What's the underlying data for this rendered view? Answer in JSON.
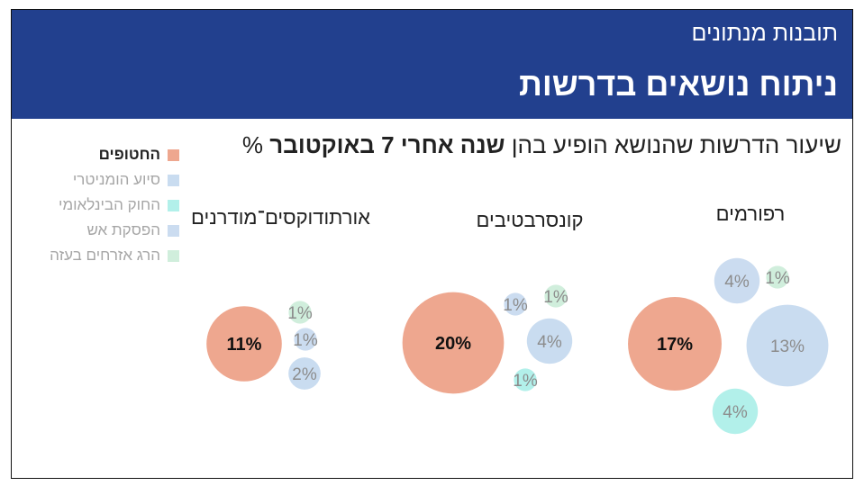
{
  "header": {
    "kicker": "תובנות מנתונים",
    "title": "ניתוח נושאים בדרשות"
  },
  "subtitle": {
    "prefix": "שיעור הדרשות שהנושא הופיע בהן",
    "bold": "שנה אחרי 7 באוקטובר",
    "suffix": "%"
  },
  "legend": [
    {
      "label": "החטופים",
      "color": "#eea78f",
      "active": true
    },
    {
      "label": "סיוע הומניטרי",
      "color": "#c9dcf0",
      "active": false
    },
    {
      "label": "החוק הבינלאומי",
      "color": "#b2f0ea",
      "active": false
    },
    {
      "label": "הפסקת אש",
      "color": "#cbdcf0",
      "active": false
    },
    {
      "label": "הרג אזרחים בעזה",
      "color": "#d0eedc",
      "active": false
    }
  ],
  "chart_data": {
    "type": "bubble",
    "unit": "%",
    "topics": [
      "החטופים",
      "סיוע הומניטרי",
      "החוק הבינלאומי",
      "הפסקת אש",
      "הרג אזרחים בעזה"
    ],
    "groups": [
      {
        "name": "אורתודוקסים־מודרנים",
        "values": {
          "החטופים": 11,
          "הרג אזרחים בעזה": 1,
          "הפסקת אש": 1,
          "סיוע הומניטרי": 2
        }
      },
      {
        "name": "קונסרבטיבים",
        "values": {
          "החטופים": 20,
          "הפסקת אש": 1,
          "הרג אזרחים בעזה": 1,
          "סיוע הומניטרי": 4,
          "החוק הבינלאומי": 1
        }
      },
      {
        "name": "רפורמים",
        "values": {
          "החטופים": 17,
          "הפסקת אש": 4,
          "הרג אזרחים בעזה": 1,
          "סיוע הומניטרי": 13,
          "החוק הבינלאומי": 4
        }
      }
    ]
  }
}
